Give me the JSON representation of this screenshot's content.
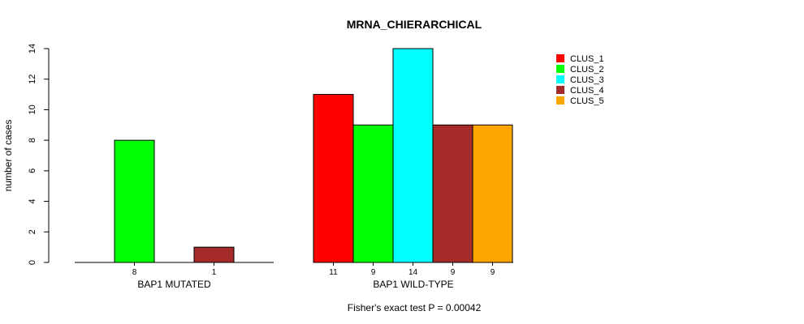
{
  "chart_data": {
    "type": "bar",
    "title": "MRNA_CHIERARCHICAL",
    "ylabel": "number of cases",
    "ylim": [
      0,
      14
    ],
    "yticks": [
      "0",
      "2",
      "4",
      "6",
      "8",
      "10",
      "12",
      "14"
    ],
    "footnote": "Fisher's exact test P = 0.00042",
    "series_names": [
      "CLUS_1",
      "CLUS_2",
      "CLUS_3",
      "CLUS_4",
      "CLUS_5"
    ],
    "colors": [
      "#ff0000",
      "#00ff00",
      "#00ffff",
      "#a52a2a",
      "#ffa500"
    ],
    "groups": [
      {
        "name": "BAP1 MUTATED",
        "values": [
          0,
          8,
          0,
          1,
          0
        ],
        "labels": [
          "",
          "8",
          "",
          "1",
          ""
        ]
      },
      {
        "name": "BAP1 WILD-TYPE",
        "values": [
          11,
          9,
          14,
          9,
          9
        ],
        "labels": [
          "11",
          "9",
          "14",
          "9",
          "9"
        ]
      }
    ]
  }
}
